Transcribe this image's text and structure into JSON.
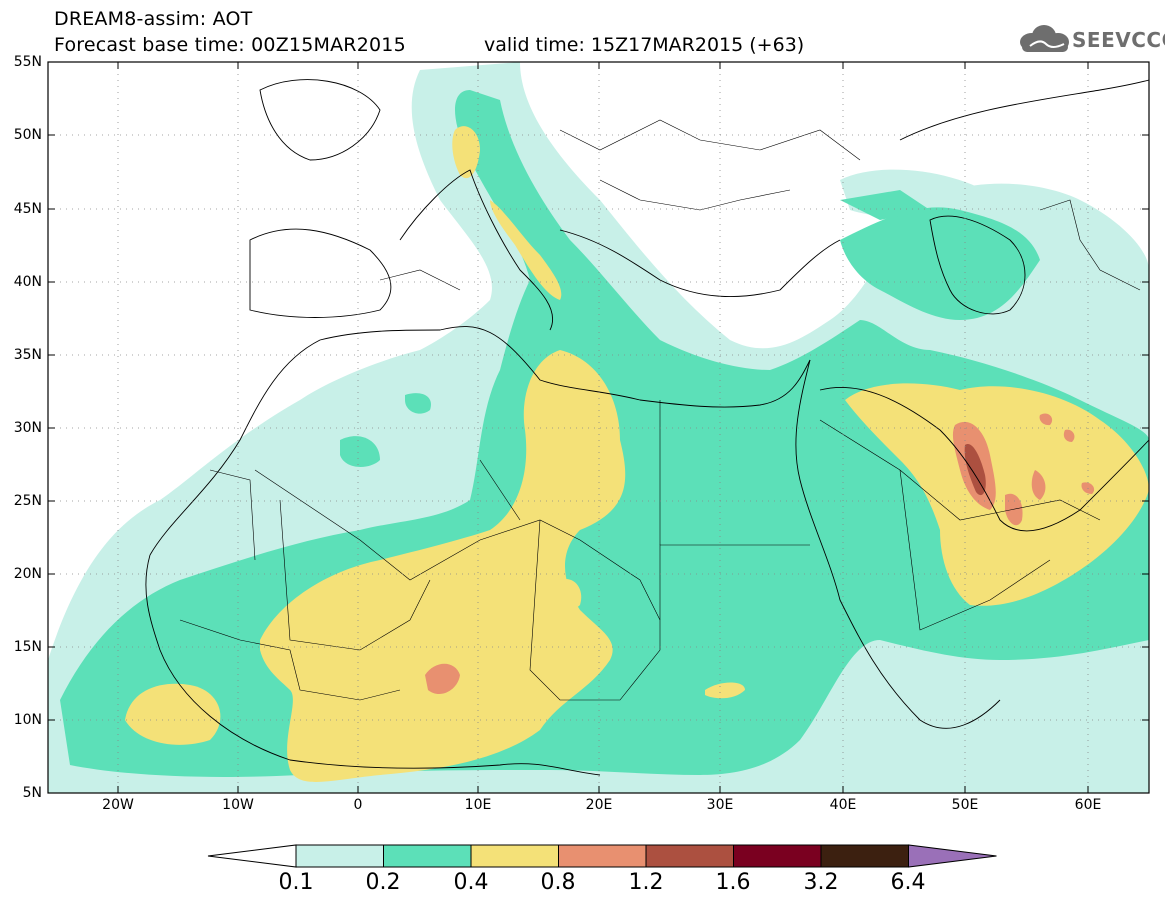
{
  "title": {
    "line1": "DREAM8-assim: AOT",
    "line2": "Forecast base time: 00Z15MAR2015",
    "valid": "valid time: 15Z17MAR2015 (+63)"
  },
  "logo": {
    "text": "SEEVCCC",
    "icon": "cloud-logo-icon"
  },
  "map": {
    "lat_labels": [
      "55N",
      "50N",
      "45N",
      "40N",
      "35N",
      "30N",
      "25N",
      "20N",
      "15N",
      "10N",
      "5N"
    ],
    "lon_labels": [
      "20W",
      "10W",
      "0",
      "10E",
      "20E",
      "30E",
      "40E",
      "50E",
      "60E"
    ],
    "lon_range": [
      -25,
      65
    ],
    "lat_range": [
      5,
      55
    ]
  },
  "colorbar": {
    "labels": [
      "0.1",
      "0.2",
      "0.4",
      "0.8",
      "1.2",
      "1.6",
      "3.2",
      "6.4"
    ],
    "colors": [
      "#c8f0e8",
      "#5ce0b8",
      "#f4e178",
      "#e89070",
      "#ac5040",
      "#7a0020",
      "#3c2010",
      "#9a70b8"
    ],
    "under_color": "#ffffff"
  }
}
